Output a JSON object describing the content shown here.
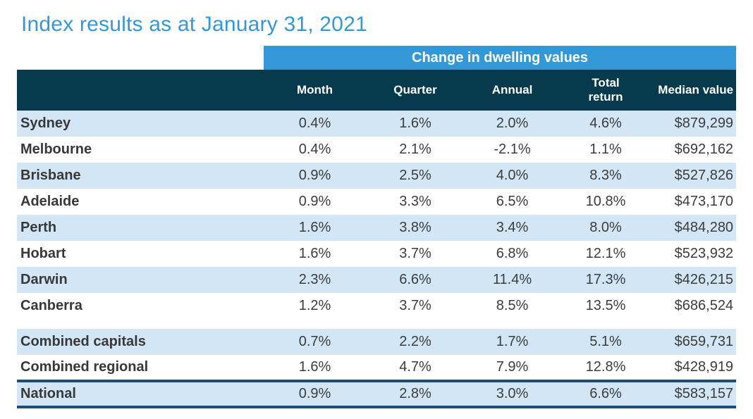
{
  "title": "Index results as at January 31, 2021",
  "table": {
    "banner": "Change in dwelling values",
    "columns": [
      "Month",
      "Quarter",
      "Annual",
      "Total return",
      "Median value"
    ],
    "rows": [
      {
        "group": "capitals",
        "label": "Sydney",
        "month": "0.4%",
        "quarter": "1.6%",
        "annual": "2.0%",
        "total_return": "4.6%",
        "median_value": "$879,299"
      },
      {
        "group": "capitals",
        "label": "Melbourne",
        "month": "0.4%",
        "quarter": "2.1%",
        "annual": "-2.1%",
        "total_return": "1.1%",
        "median_value": "$692,162"
      },
      {
        "group": "capitals",
        "label": "Brisbane",
        "month": "0.9%",
        "quarter": "2.5%",
        "annual": "4.0%",
        "total_return": "8.3%",
        "median_value": "$527,826"
      },
      {
        "group": "capitals",
        "label": "Adelaide",
        "month": "0.9%",
        "quarter": "3.3%",
        "annual": "6.5%",
        "total_return": "10.8%",
        "median_value": "$473,170"
      },
      {
        "group": "capitals",
        "label": "Perth",
        "month": "1.6%",
        "quarter": "3.8%",
        "annual": "3.4%",
        "total_return": "8.0%",
        "median_value": "$484,280"
      },
      {
        "group": "capitals",
        "label": "Hobart",
        "month": "1.6%",
        "quarter": "3.7%",
        "annual": "6.8%",
        "total_return": "12.1%",
        "median_value": "$523,932"
      },
      {
        "group": "capitals",
        "label": "Darwin",
        "month": "2.3%",
        "quarter": "6.6%",
        "annual": "11.4%",
        "total_return": "17.3%",
        "median_value": "$426,215"
      },
      {
        "group": "capitals",
        "label": "Canberra",
        "month": "1.2%",
        "quarter": "3.7%",
        "annual": "8.5%",
        "total_return": "13.5%",
        "median_value": "$686,524"
      },
      {
        "group": "aggregates",
        "label": "Combined capitals",
        "month": "0.7%",
        "quarter": "2.2%",
        "annual": "1.7%",
        "total_return": "5.1%",
        "median_value": "$659,731"
      },
      {
        "group": "aggregates",
        "label": "Combined regional",
        "month": "1.6%",
        "quarter": "4.7%",
        "annual": "7.9%",
        "total_return": "12.8%",
        "median_value": "$428,919"
      },
      {
        "group": "national",
        "label": "National",
        "month": "0.9%",
        "quarter": "2.8%",
        "annual": "3.0%",
        "total_return": "6.6%",
        "median_value": "$583,157"
      }
    ]
  },
  "colors": {
    "accent_blue": "#3498d7",
    "header_teal": "#073a4c",
    "stripe_blue": "#d3e6f5",
    "border_navy": "#1e4d76",
    "text_charcoal": "#3c3c3c"
  },
  "chart_data": {
    "type": "table",
    "title": "Index results as at January 31, 2021",
    "group_header": "Change in dwelling values",
    "columns": [
      "Month %",
      "Quarter %",
      "Annual %",
      "Total return %",
      "Median value $"
    ],
    "regions": [
      "Sydney",
      "Melbourne",
      "Brisbane",
      "Adelaide",
      "Perth",
      "Hobart",
      "Darwin",
      "Canberra",
      "Combined capitals",
      "Combined regional",
      "National"
    ],
    "values": [
      [
        0.4,
        1.6,
        2.0,
        4.6,
        879299
      ],
      [
        0.4,
        2.1,
        -2.1,
        1.1,
        692162
      ],
      [
        0.9,
        2.5,
        4.0,
        8.3,
        527826
      ],
      [
        0.9,
        3.3,
        6.5,
        10.8,
        473170
      ],
      [
        1.6,
        3.8,
        3.4,
        8.0,
        484280
      ],
      [
        1.6,
        3.7,
        6.8,
        12.1,
        523932
      ],
      [
        2.3,
        6.6,
        11.4,
        17.3,
        426215
      ],
      [
        1.2,
        3.7,
        8.5,
        13.5,
        686524
      ],
      [
        0.7,
        2.2,
        1.7,
        5.1,
        659731
      ],
      [
        1.6,
        4.7,
        7.9,
        12.8,
        428919
      ],
      [
        0.9,
        2.8,
        3.0,
        6.6,
        583157
      ]
    ]
  }
}
